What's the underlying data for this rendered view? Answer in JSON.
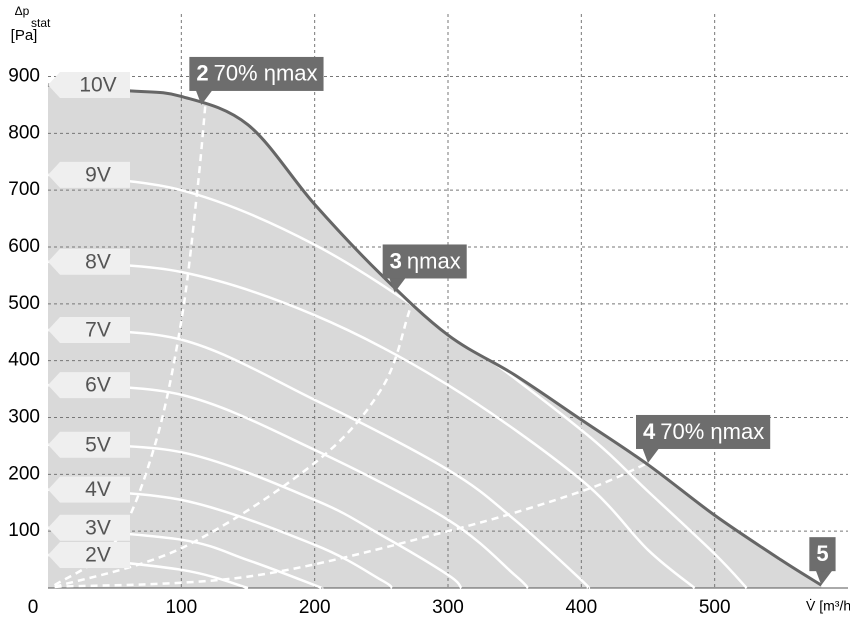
{
  "chart_data": {
    "type": "line",
    "y_label": "Δp",
    "y_label_sub": "stat",
    "y_unit": "[Pa]",
    "x_label": "V̇ [m³/h]",
    "xlim": [
      0,
      600
    ],
    "ylim": [
      0,
      1010
    ],
    "xticks": [
      0,
      100,
      200,
      300,
      400,
      500
    ],
    "yticks": [
      100,
      200,
      300,
      400,
      500,
      600,
      700,
      800,
      900
    ],
    "grid": true,
    "fill_color": "#d9d9d9",
    "series": [
      {
        "name": "10V",
        "color": "#666666",
        "x": [
          0,
          60,
          100,
          150,
          200,
          250,
          300,
          350,
          400,
          450,
          500,
          550,
          580
        ],
        "values": [
          885,
          875,
          865,
          815,
          675,
          551,
          445,
          375,
          296,
          217,
          128,
          49,
          5
        ]
      },
      {
        "name": "9V",
        "color": "#ffffff",
        "x": [
          0,
          100,
          200,
          300,
          400,
          450,
          500,
          524
        ],
        "values": [
          727,
          700,
          604,
          454,
          278,
          170,
          60,
          0
        ]
      },
      {
        "name": "8V",
        "color": "#ffffff",
        "x": [
          0,
          100,
          200,
          300,
          400,
          450,
          485
        ],
        "values": [
          574,
          556,
          480,
          357,
          190,
          67,
          0
        ]
      },
      {
        "name": "7V",
        "color": "#ffffff",
        "x": [
          0,
          100,
          200,
          300,
          350,
          400,
          405
        ],
        "values": [
          454,
          437,
          331,
          208,
          120,
          14,
          0
        ]
      },
      {
        "name": "6V",
        "color": "#ffffff",
        "x": [
          0,
          100,
          200,
          300,
          350,
          360
        ],
        "values": [
          357,
          340,
          243,
          120,
          23,
          0
        ]
      },
      {
        "name": "5V",
        "color": "#ffffff",
        "x": [
          0,
          100,
          200,
          250,
          300,
          310
        ],
        "values": [
          252,
          239,
          155,
          93,
          23,
          0
        ]
      },
      {
        "name": "4V",
        "color": "#ffffff",
        "x": [
          0,
          100,
          200,
          250,
          258
        ],
        "values": [
          173,
          155,
          76,
          14,
          0
        ]
      },
      {
        "name": "3V",
        "color": "#ffffff",
        "x": [
          0,
          100,
          150,
          200,
          205
        ],
        "values": [
          106,
          85,
          49,
          5,
          0
        ]
      },
      {
        "name": "2V",
        "color": "#ffffff",
        "x": [
          0,
          100,
          150
        ],
        "values": [
          58,
          32,
          0
        ]
      }
    ],
    "dashed_curves": [
      {
        "x": [
          5,
          50,
          80,
          100,
          112,
          118
        ],
        "values": [
          5,
          80,
          250,
          470,
          700,
          850
        ]
      },
      {
        "x": [
          5,
          100,
          200,
          250,
          270,
          275
        ],
        "values": [
          2,
          70,
          220,
          350,
          480,
          530
        ]
      },
      {
        "x": [
          5,
          150,
          300,
          400,
          450
        ],
        "values": [
          2,
          20,
          100,
          170,
          220
        ]
      }
    ],
    "annotations": [
      {
        "number": "2",
        "text": "70% ηmax",
        "x": 115,
        "y": 850
      },
      {
        "number": "3",
        "text": "ηmax",
        "x": 260,
        "y": 520
      },
      {
        "number": "4",
        "text": "70% ηmax",
        "x": 450,
        "y": 220
      },
      {
        "number": "5",
        "x": 580,
        "y": 5
      }
    ]
  }
}
